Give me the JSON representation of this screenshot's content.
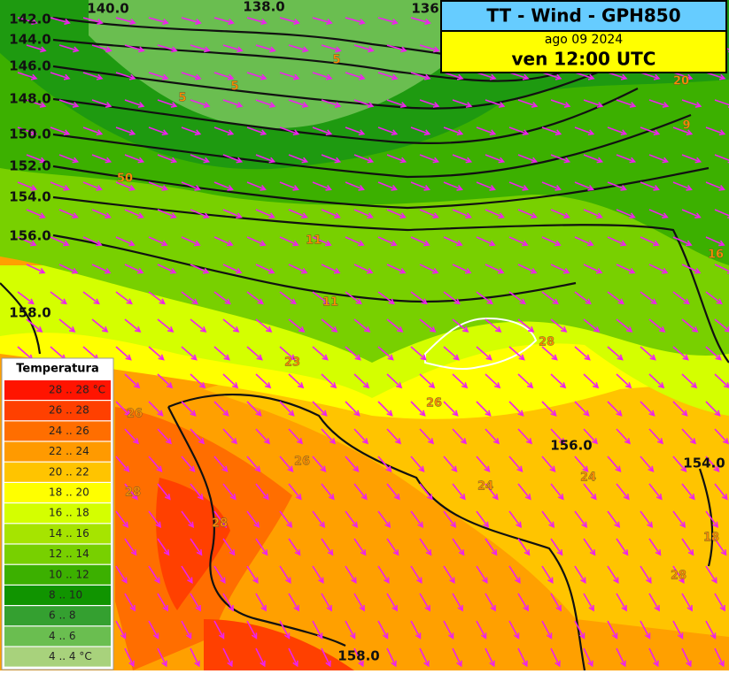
{
  "header": {
    "title": "TT - Wind - GPH850",
    "date": "ago 09 2024",
    "time": "ven 12:00 UTC"
  },
  "legend": {
    "title": "Temperatura",
    "entries": [
      {
        "label": "28 .. 28 °C",
        "color": "#ff1400"
      },
      {
        "label": "26 .. 28",
        "color": "#ff4000"
      },
      {
        "label": "24 .. 26",
        "color": "#ff6e00"
      },
      {
        "label": "22 .. 24",
        "color": "#ff9a00"
      },
      {
        "label": "20 .. 22",
        "color": "#ffc400"
      },
      {
        "label": "18 .. 20",
        "color": "#ffff00"
      },
      {
        "label": "16 .. 18",
        "color": "#d4ff00"
      },
      {
        "label": "14 .. 16",
        "color": "#a6e400"
      },
      {
        "label": "12 .. 14",
        "color": "#78d000"
      },
      {
        "label": "10 .. 12",
        "color": "#3cb000"
      },
      {
        "label": "8 .. 10",
        "color": "#109400"
      },
      {
        "label": "6 .. 8",
        "color": "#34a030"
      },
      {
        "label": "4 .. 6",
        "color": "#6abe50"
      },
      {
        "label": "4 .. 4 °C",
        "color": "#a8d27c"
      }
    ]
  },
  "contour_labels": [
    "140.0",
    "138.0",
    "136",
    "142.0",
    "144.0",
    "146.0",
    "148.0",
    "150.0",
    "152.0",
    "154.0",
    "156.0",
    "158.0",
    "156.0",
    "154.0",
    "158.0"
  ],
  "value_labels": [
    "5",
    "5",
    "5",
    "20",
    "9",
    "50",
    "11",
    "11",
    "16",
    "28",
    "26",
    "26",
    "28",
    "28",
    "26",
    "24",
    "24",
    "18",
    "28",
    "23"
  ]
}
